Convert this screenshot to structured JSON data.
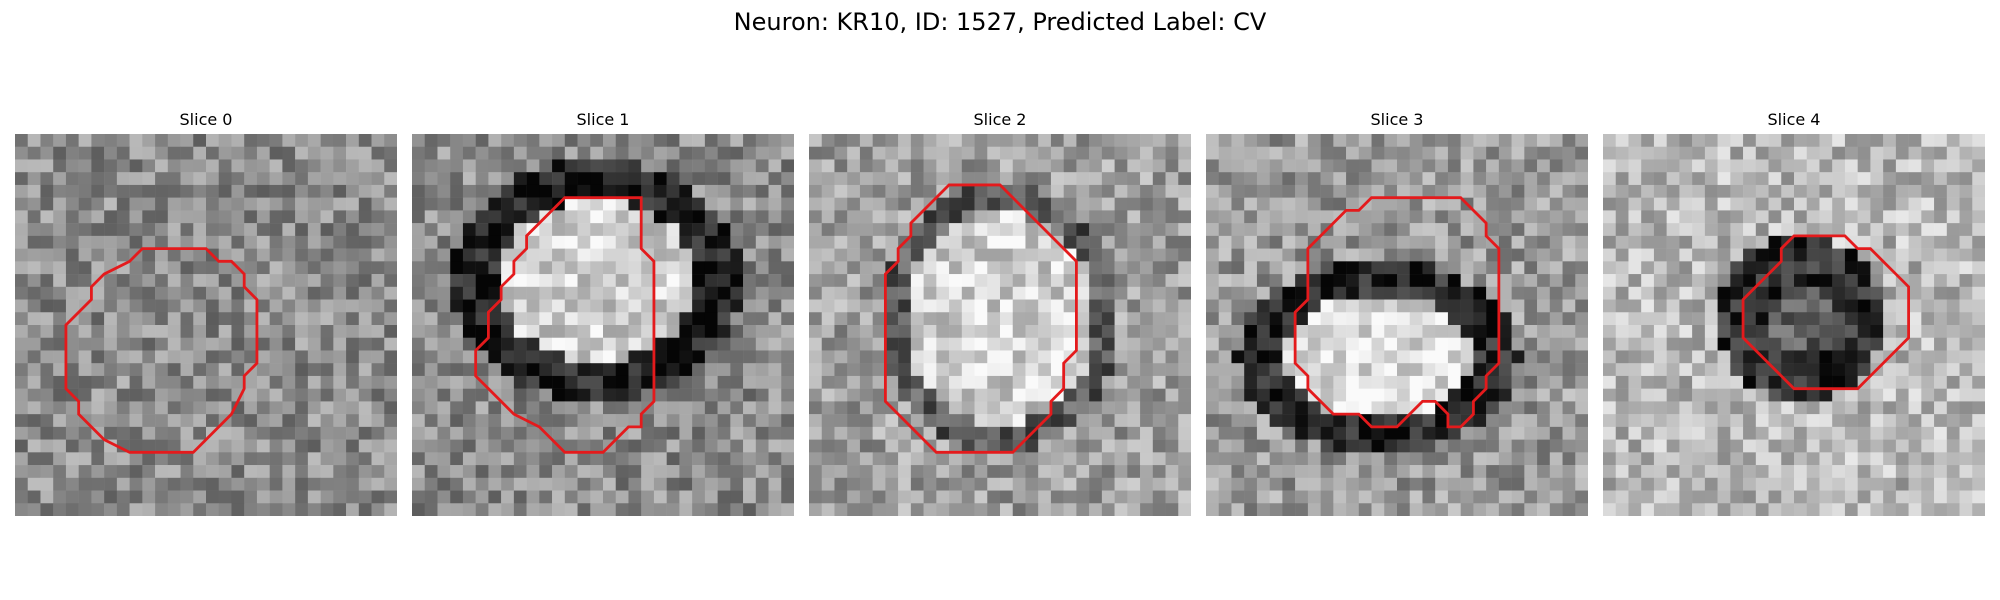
{
  "figure": {
    "title": "Neuron: KR10, ID: 1527, Predicted Label: CV"
  },
  "panels": [
    {
      "title": "Slice 0",
      "contour": [
        [
          11,
          9
        ],
        [
          15,
          9
        ],
        [
          16,
          10
        ],
        [
          17,
          10
        ],
        [
          18,
          11
        ],
        [
          18,
          12
        ],
        [
          19,
          13
        ],
        [
          19,
          18
        ],
        [
          18,
          19
        ],
        [
          18,
          20
        ],
        [
          17,
          22
        ],
        [
          16,
          23
        ],
        [
          15,
          24
        ],
        [
          14,
          25
        ],
        [
          9,
          25
        ],
        [
          7,
          24
        ],
        [
          6,
          23
        ],
        [
          5,
          22
        ],
        [
          5,
          21
        ],
        [
          4,
          20
        ],
        [
          4,
          15
        ],
        [
          5,
          14
        ],
        [
          6,
          13
        ],
        [
          6,
          12
        ],
        [
          7,
          11
        ],
        [
          9,
          10
        ],
        [
          10,
          9
        ]
      ],
      "bg": "noise",
      "seed": 3
    },
    {
      "title": "Slice 1",
      "contour": [
        [
          12,
          5
        ],
        [
          18,
          5
        ],
        [
          18,
          9
        ],
        [
          19,
          10
        ],
        [
          19,
          21
        ],
        [
          18,
          22
        ],
        [
          18,
          23
        ],
        [
          17,
          23
        ],
        [
          16,
          24
        ],
        [
          15,
          25
        ],
        [
          12,
          25
        ],
        [
          11,
          24
        ],
        [
          10,
          23
        ],
        [
          8,
          22
        ],
        [
          6,
          20
        ],
        [
          5,
          19
        ],
        [
          5,
          17
        ],
        [
          6,
          16
        ],
        [
          6,
          14
        ],
        [
          7,
          13
        ],
        [
          7,
          12
        ],
        [
          8,
          11
        ],
        [
          8,
          10
        ],
        [
          9,
          9
        ],
        [
          9,
          8
        ],
        [
          10,
          7
        ]
      ],
      "bg": "ring",
      "seed": 7
    },
    {
      "title": "Slice 2",
      "contour": [
        [
          11,
          4
        ],
        [
          15,
          4
        ],
        [
          16,
          5
        ],
        [
          17,
          6
        ],
        [
          18,
          7
        ],
        [
          19,
          8
        ],
        [
          20,
          9
        ],
        [
          21,
          10
        ],
        [
          21,
          17
        ],
        [
          20,
          18
        ],
        [
          20,
          20
        ],
        [
          19,
          21
        ],
        [
          19,
          22
        ],
        [
          18,
          23
        ],
        [
          17,
          24
        ],
        [
          16,
          25
        ],
        [
          10,
          25
        ],
        [
          9,
          24
        ],
        [
          8,
          23
        ],
        [
          7,
          22
        ],
        [
          6,
          21
        ],
        [
          6,
          11
        ],
        [
          7,
          10
        ],
        [
          7,
          9
        ],
        [
          8,
          8
        ],
        [
          8,
          7
        ],
        [
          9,
          6
        ],
        [
          10,
          5
        ]
      ],
      "bg": "blob",
      "seed": 11
    },
    {
      "title": "Slice 3",
      "contour": [
        [
          15,
          5
        ],
        [
          20,
          5
        ],
        [
          21,
          6
        ],
        [
          22,
          7
        ],
        [
          22,
          8
        ],
        [
          23,
          9
        ],
        [
          23,
          18
        ],
        [
          22,
          19
        ],
        [
          22,
          20
        ],
        [
          21,
          21
        ],
        [
          21,
          22
        ],
        [
          20,
          23
        ],
        [
          19,
          23
        ],
        [
          19,
          22
        ],
        [
          18,
          21
        ],
        [
          17,
          21
        ],
        [
          16,
          22
        ],
        [
          15,
          23
        ],
        [
          13,
          23
        ],
        [
          12,
          22
        ],
        [
          10,
          22
        ],
        [
          9,
          21
        ],
        [
          8,
          20
        ],
        [
          8,
          19
        ],
        [
          7,
          18
        ],
        [
          7,
          14
        ],
        [
          8,
          13
        ],
        [
          8,
          9
        ],
        [
          9,
          8
        ],
        [
          10,
          7
        ],
        [
          11,
          6
        ],
        [
          12,
          6
        ],
        [
          13,
          5
        ]
      ],
      "bg": "ring2",
      "seed": 5
    },
    {
      "title": "Slice 4",
      "contour": [
        [
          15,
          8
        ],
        [
          19,
          8
        ],
        [
          20,
          9
        ],
        [
          21,
          9
        ],
        [
          22,
          10
        ],
        [
          23,
          11
        ],
        [
          24,
          12
        ],
        [
          24,
          16
        ],
        [
          23,
          17
        ],
        [
          22,
          18
        ],
        [
          21,
          19
        ],
        [
          20,
          20
        ],
        [
          15,
          20
        ],
        [
          14,
          19
        ],
        [
          13,
          18
        ],
        [
          12,
          17
        ],
        [
          11,
          16
        ],
        [
          11,
          13
        ],
        [
          12,
          12
        ],
        [
          13,
          11
        ],
        [
          14,
          10
        ],
        [
          14,
          9
        ]
      ],
      "bg": "donut",
      "seed": 13
    }
  ],
  "colors": {
    "contour": "#e41a1c"
  }
}
